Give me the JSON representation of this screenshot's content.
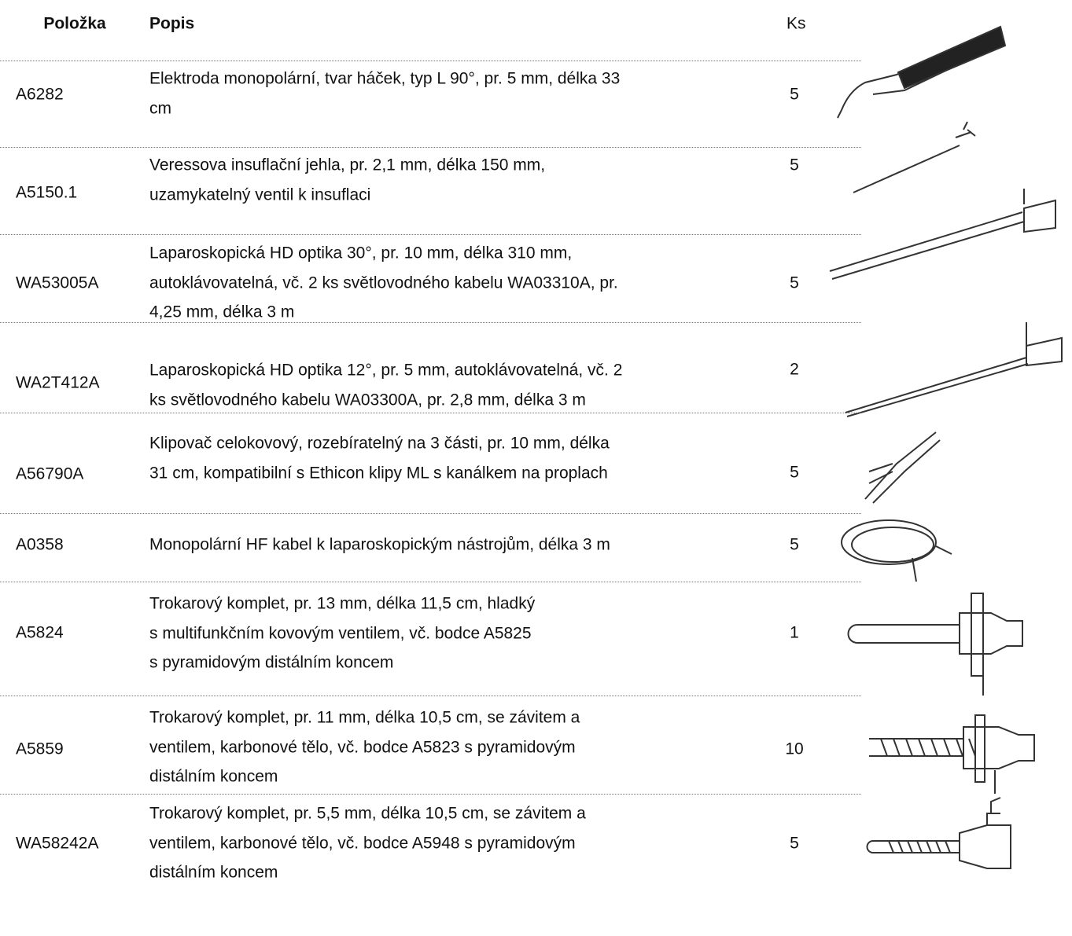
{
  "table": {
    "header": [
      "Položka",
      "Popis",
      "Ks"
    ],
    "rows": [
      {
        "code": "A6282",
        "description": [
          "Elektroda monopolární, tvar háček, typ L 90°, pr. 5 mm, délka 33",
          "cm"
        ],
        "qty": 5
      },
      {
        "code": "A5150.1",
        "description": [
          "Veressova insuflační jehla, pr. 2,1 mm, délka 150 mm,",
          "uzamykatelný ventil k insuflaci"
        ],
        "qty": 5
      },
      {
        "code": "WA53005A",
        "description": [
          "Laparoskopická HD optika 30°, pr. 10 mm, délka 310 mm,",
          "autoklávovatelná, vč. 2 ks světlovodného kabelu WA03310A, pr.",
          "4,25 mm, délka 3 m"
        ],
        "qty": 5
      },
      {
        "code": "WA2T412A",
        "description": [
          "Laparoskopická HD optika 12°, pr. 5 mm, autoklávovatelná, vč. 2",
          "ks světlovodného kabelu WA03300A, pr. 2,8 mm, délka 3 m"
        ],
        "qty": 2
      },
      {
        "code": "A56790A",
        "description": [
          "Klipovač celokovový, rozebíratelný na 3 části, pr. 10 mm, délka",
          "31 cm, kompatibilní s Ethicon klipy ML s kanálkem na proplach"
        ],
        "qty": 5
      },
      {
        "code": "A0358",
        "description": [
          "Monopolární HF kabel k laparoskopickým nástrojům, délka 3 m"
        ],
        "qty": 5
      },
      {
        "code": "A5824",
        "description": [
          "Trokarový komplet, pr. 13 mm, délka 11,5 cm, hladký",
          "s multifunkčním kovovým ventilem, vč. bodce A5825",
          "s pyramidovým distálním koncem"
        ],
        "qty": 1
      },
      {
        "code": "A5859",
        "description": [
          "Trokarový komplet, pr. 11 mm, délka 10,5 cm, se závitem a",
          "ventilem, karbonové tělo, vč. bodce A5823 s pyramidovým",
          "distálním koncem"
        ],
        "qty": 10
      },
      {
        "code": "WA58242A",
        "description": [
          "Trokarový komplet, pr. 5,5 mm, délka 10,5 cm, se závitem a",
          "ventilem, karbonové tělo, vč. bodce A5948 s pyramidovým",
          "distálním koncem"
        ],
        "qty": 5
      }
    ]
  }
}
